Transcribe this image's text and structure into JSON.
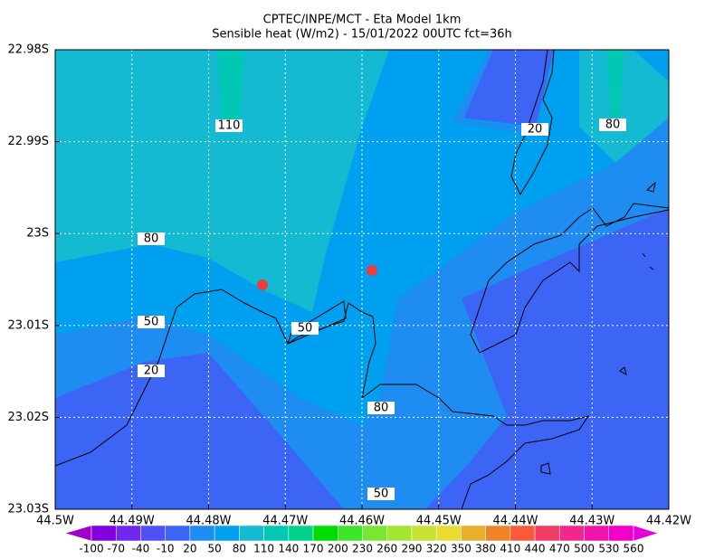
{
  "header": {
    "title": "CPTEC/INPE/MCT -  Eta Model 1km",
    "subtitle": "Sensible heat (W/m2) - 15/01/2022 00UTC fct=36h"
  },
  "map": {
    "lon_ticks": [
      "44.5W",
      "44.49W",
      "44.48W",
      "44.47W",
      "44.46W",
      "44.45W",
      "44.44W",
      "44.43W",
      "44.42W"
    ],
    "lat_ticks": [
      "22.98S",
      "22.99S",
      "23S",
      "23.01S",
      "23.02S",
      "23.03S"
    ],
    "contour_labels": [
      110,
      80,
      50,
      20,
      50,
      80,
      50,
      20,
      80
    ]
  },
  "colorbar": {
    "labels": [
      -100,
      -70,
      -40,
      -10,
      20,
      50,
      80,
      110,
      140,
      170,
      200,
      230,
      260,
      290,
      320,
      350,
      380,
      410,
      440,
      470,
      500,
      530,
      560
    ],
    "colors": [
      "#a000c8",
      "#8200dc",
      "#6e28f0",
      "#5050f5",
      "#3c64f5",
      "#1e8cf0",
      "#00a0f0",
      "#14b9d2",
      "#00c8b4",
      "#00d28c",
      "#00dc00",
      "#3ce628",
      "#78e632",
      "#a0e632",
      "#c8e132",
      "#e6dc32",
      "#e6af2d",
      "#f08228",
      "#fa5a3c",
      "#f03c64",
      "#f0288c",
      "#f014a8",
      "#f000c8",
      "#e600dc"
    ]
  }
}
